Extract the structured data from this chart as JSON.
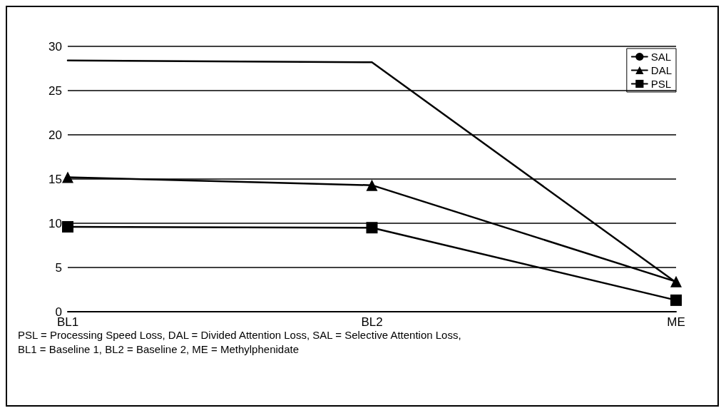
{
  "chart_data": {
    "type": "line",
    "categories": [
      "BL1",
      "BL2",
      "ME"
    ],
    "series": [
      {
        "name": "SAL",
        "color": "#000000",
        "marker": "none",
        "values": [
          28.4,
          28.2,
          3.3
        ]
      },
      {
        "name": "DAL",
        "color": "#000000",
        "marker": "triangle",
        "values": [
          15.2,
          14.3,
          3.4
        ]
      },
      {
        "name": "PSL",
        "color": "#000000",
        "marker": "square",
        "values": [
          9.6,
          9.5,
          1.3
        ]
      }
    ],
    "ylim": [
      0,
      30
    ],
    "yticks": [
      0,
      5,
      10,
      15,
      20,
      25,
      30
    ],
    "grid": "y",
    "legend": "top right",
    "line_style": "solid",
    "annotations": [
      "PSL = Processing Speed Loss, DAL = Divided Attention Loss, SAL = Selective Attention Loss,",
      "BL1 = Baseline 1, BL2 = Baseline 2, ME = Methylphenidate"
    ]
  }
}
